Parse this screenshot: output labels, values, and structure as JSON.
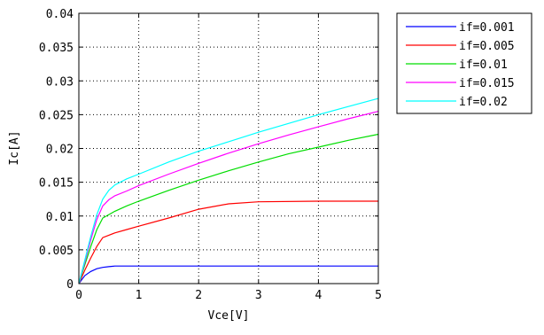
{
  "chart_data": {
    "type": "line",
    "title": "",
    "xlabel": "Vce[V]",
    "ylabel": "Ic[A]",
    "xlim": [
      0,
      5
    ],
    "ylim": [
      0,
      0.04
    ],
    "x_ticks": [
      "0",
      "1",
      "2",
      "3",
      "4",
      "5"
    ],
    "y_ticks": [
      "0",
      "0.005",
      "0.01",
      "0.015",
      "0.02",
      "0.025",
      "0.03",
      "0.035",
      "0.04"
    ],
    "grid": true,
    "legend_position": "outside-right-top",
    "series": [
      {
        "name": "if=0.001",
        "color": "#0000ff",
        "x": [
          0,
          0.1,
          0.2,
          0.3,
          0.4,
          0.5,
          0.6,
          0.8,
          1,
          2,
          3,
          4,
          5
        ],
        "y": [
          0,
          0.0012,
          0.0018,
          0.0022,
          0.0024,
          0.0025,
          0.0026,
          0.0026,
          0.0026,
          0.0026,
          0.0026,
          0.0026,
          0.0026
        ]
      },
      {
        "name": "if=0.005",
        "color": "#ff0000",
        "x": [
          0,
          0.1,
          0.2,
          0.3,
          0.4,
          0.6,
          0.8,
          1,
          1.5,
          2,
          2.5,
          3,
          4,
          5
        ],
        "y": [
          0,
          0.002,
          0.0038,
          0.0055,
          0.0068,
          0.0075,
          0.008,
          0.0085,
          0.0097,
          0.011,
          0.0118,
          0.0121,
          0.0122,
          0.0122
        ]
      },
      {
        "name": "if=0.01",
        "color": "#00dd00",
        "x": [
          0,
          0.1,
          0.2,
          0.3,
          0.4,
          0.6,
          0.8,
          1,
          1.5,
          2,
          2.5,
          3,
          3.5,
          4,
          4.5,
          5
        ],
        "y": [
          0,
          0.0028,
          0.0055,
          0.008,
          0.0097,
          0.0107,
          0.0115,
          0.0122,
          0.0138,
          0.0153,
          0.0167,
          0.018,
          0.0192,
          0.0202,
          0.0212,
          0.0221
        ]
      },
      {
        "name": "if=0.015",
        "color": "#ff00ff",
        "x": [
          0,
          0.1,
          0.2,
          0.3,
          0.4,
          0.5,
          0.6,
          0.8,
          1,
          1.5,
          2,
          2.5,
          3,
          3.5,
          4,
          4.5,
          5
        ],
        "y": [
          0,
          0.0032,
          0.0065,
          0.0095,
          0.0115,
          0.0124,
          0.013,
          0.0137,
          0.0145,
          0.0162,
          0.0178,
          0.0193,
          0.0207,
          0.022,
          0.0232,
          0.0244,
          0.0255
        ]
      },
      {
        "name": "if=0.02",
        "color": "#00ffff",
        "x": [
          0,
          0.1,
          0.2,
          0.3,
          0.4,
          0.5,
          0.6,
          0.8,
          1,
          1.5,
          2,
          2.5,
          3,
          3.5,
          4,
          4.5,
          5
        ],
        "y": [
          0,
          0.0035,
          0.007,
          0.0102,
          0.0125,
          0.0138,
          0.0146,
          0.0155,
          0.0162,
          0.018,
          0.0196,
          0.021,
          0.0224,
          0.0237,
          0.025,
          0.0262,
          0.0274
        ]
      }
    ]
  }
}
